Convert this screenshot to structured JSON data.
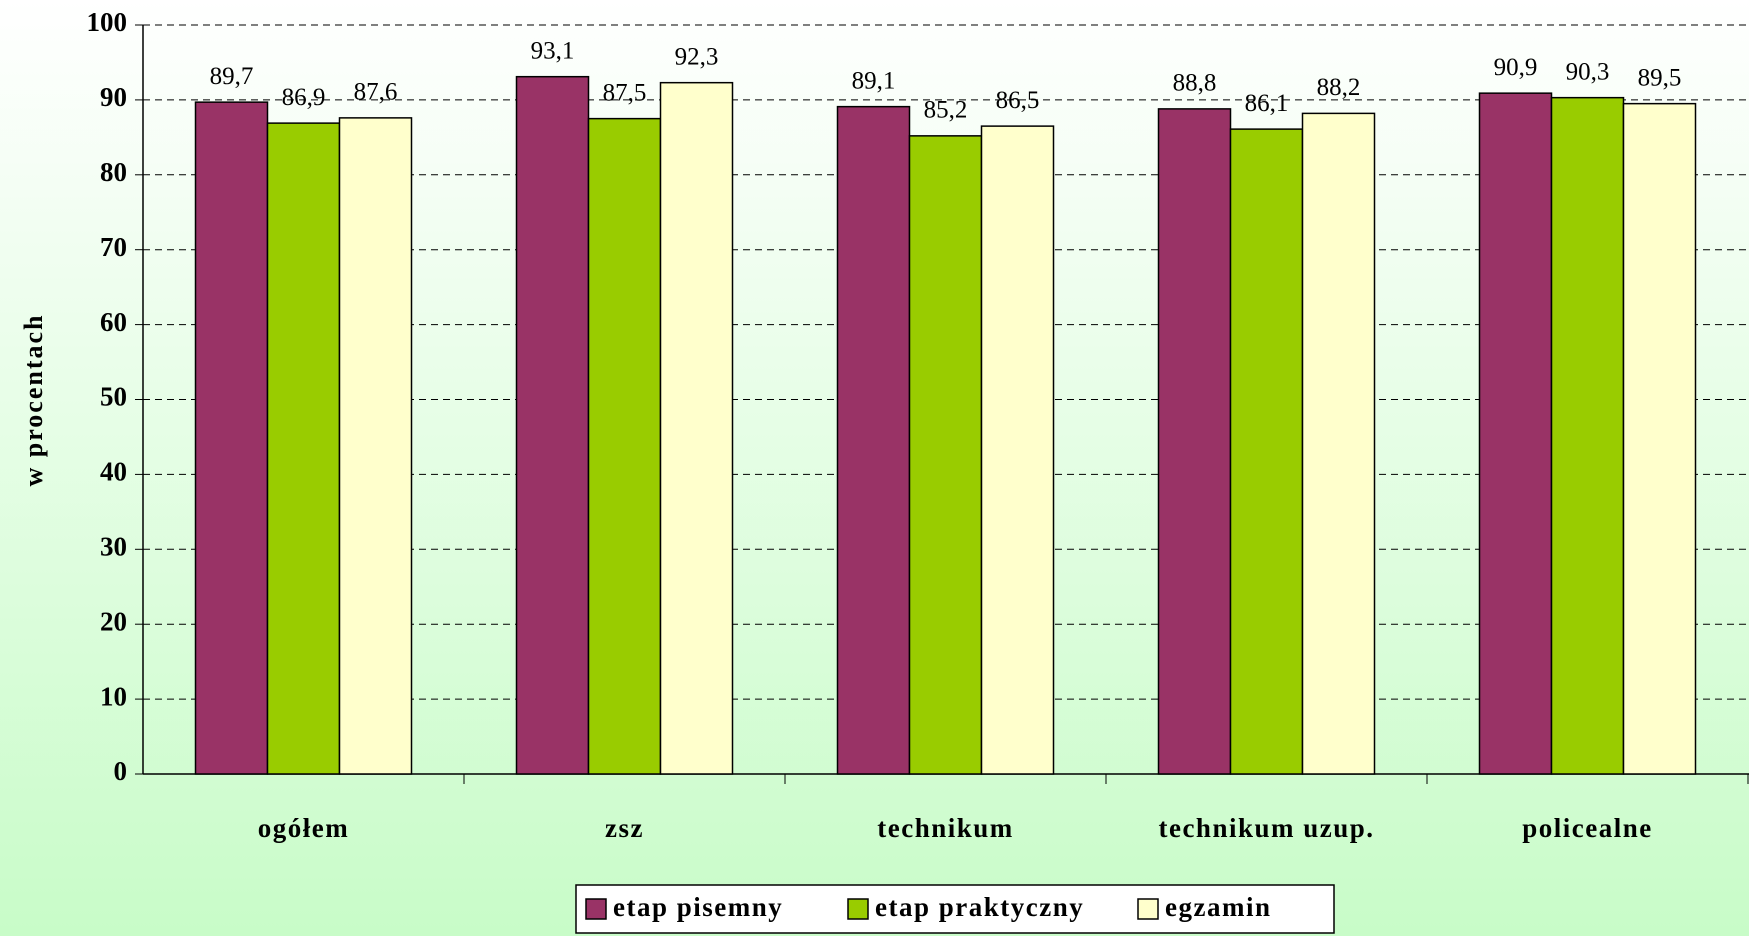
{
  "chart_data": {
    "type": "bar",
    "y_label": "w procentach",
    "categories": [
      "ogółem",
      "zsz",
      "technikum",
      "technikum uzup.",
      "policealne"
    ],
    "series": [
      {
        "name": "etap pisemny",
        "color": "#993366",
        "values": [
          89.7,
          93.1,
          89.1,
          88.8,
          90.9
        ],
        "value_labels": [
          "89,7",
          "93,1",
          "89,1",
          "88,8",
          "90,9"
        ]
      },
      {
        "name": "etap praktyczny",
        "color": "#99cc00",
        "values": [
          86.9,
          87.5,
          85.2,
          86.1,
          90.3
        ],
        "value_labels": [
          "86,9",
          "87,5",
          "85,2",
          "86,1",
          "90,3"
        ]
      },
      {
        "name": "egzamin",
        "color": "#ffffcc",
        "values": [
          87.6,
          92.3,
          86.5,
          88.2,
          89.5
        ],
        "value_labels": [
          "87,6",
          "92,3",
          "86,5",
          "88,2",
          "89,5"
        ]
      }
    ],
    "ylim": [
      0,
      100
    ],
    "yticks": [
      0,
      10,
      20,
      30,
      40,
      50,
      60,
      70,
      80,
      90,
      100
    ],
    "grid": true,
    "legend": "bottom"
  }
}
